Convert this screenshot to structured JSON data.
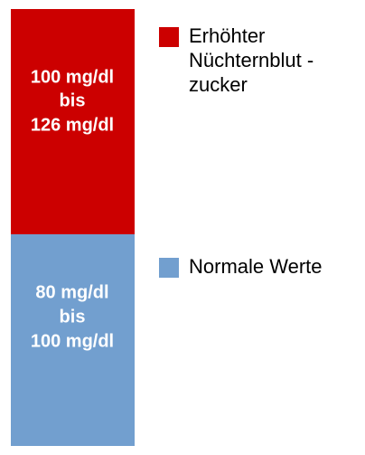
{
  "blocks": [
    {
      "color": "#cc0000",
      "lines": [
        "100 mg/dl",
        "bis",
        "126 mg/dl"
      ]
    },
    {
      "color": "#729fcf",
      "lines": [
        "80 mg/dl",
        "bis",
        "100 mg/dl"
      ]
    }
  ],
  "legend": [
    {
      "color": "#cc0000",
      "lines": [
        "Erhöhter",
        "Nüchternblut -",
        "zucker"
      ]
    },
    {
      "color": "#729fcf",
      "lines": [
        "Normale Werte"
      ]
    }
  ]
}
